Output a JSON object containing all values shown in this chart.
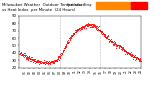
{
  "bg_color": "#ffffff",
  "dot_color": "#ff0000",
  "dot_size": 0.4,
  "ylim": [
    20,
    90
  ],
  "xlim": [
    0,
    1440
  ],
  "yticks": [
    20,
    30,
    40,
    50,
    60,
    70,
    80,
    90
  ],
  "ytick_fontsize": 2.8,
  "xtick_fontsize": 2.2,
  "vline_positions": [
    480,
    960
  ],
  "vline_color": "#bbbbbb",
  "legend_orange": "#ff8800",
  "legend_red": "#ff0000",
  "xtick_positions": [
    60,
    120,
    180,
    240,
    300,
    360,
    420,
    480,
    540,
    600,
    660,
    720,
    780,
    840,
    900,
    960,
    1020,
    1080,
    1140,
    1200,
    1260,
    1320,
    1380,
    1440
  ],
  "xtick_labels": [
    "01",
    "02",
    "03",
    "04",
    "05",
    "06",
    "07",
    "08",
    "09",
    "10",
    "11",
    "12",
    "13",
    "14",
    "15",
    "16",
    "17",
    "18",
    "19",
    "20",
    "21",
    "22",
    "23",
    "24"
  ],
  "curve_points_x": [
    0,
    60,
    120,
    180,
    240,
    300,
    360,
    420,
    480,
    540,
    600,
    660,
    720,
    780,
    840,
    900,
    960,
    1020,
    1080,
    1140,
    1200,
    1260,
    1320,
    1380,
    1440
  ],
  "curve_points_y": [
    40,
    37,
    33,
    30,
    28,
    27,
    27,
    30,
    35,
    48,
    60,
    68,
    73,
    76,
    78,
    75,
    70,
    63,
    57,
    52,
    48,
    43,
    38,
    34,
    30
  ]
}
